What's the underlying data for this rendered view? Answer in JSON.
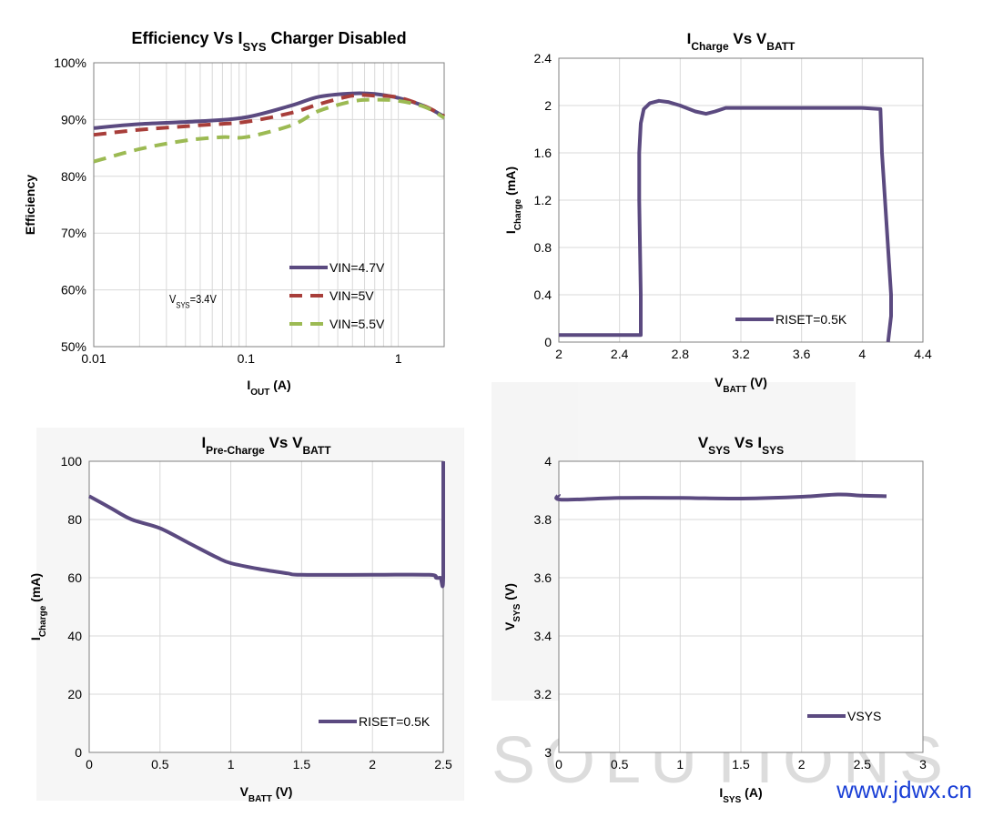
{
  "watermark": {
    "text": "SOLUTIONS"
  },
  "site": {
    "url": "www.jdwx.cn"
  },
  "colors": {
    "purple": "#5b4a80",
    "red": "#a83e3a",
    "green": "#9cba53",
    "grid": "#d9d9d9",
    "axis": "#808080"
  },
  "chart_data": [
    {
      "id": "eff",
      "type": "line",
      "title_parts": [
        {
          "t": "Efficiency Vs  I"
        },
        {
          "t": "SYS",
          "sub": true
        },
        {
          "t": " Charger Disabled"
        }
      ],
      "xlabel_parts": [
        {
          "t": "I"
        },
        {
          "t": "OUT",
          "sub": true
        },
        {
          "t": " (A)"
        }
      ],
      "ylabel_parts": [
        {
          "t": "Efficiency"
        }
      ],
      "xscale": "log",
      "xlim": [
        0.01,
        2
      ],
      "ylim": [
        50,
        100
      ],
      "xticks": [
        0.01,
        0.1,
        1
      ],
      "xtick_labels": [
        "0.01",
        "0.1",
        "1"
      ],
      "yticks": [
        50,
        60,
        70,
        80,
        90,
        100
      ],
      "ytick_labels": [
        "50%",
        "60%",
        "70%",
        "80%",
        "90%",
        "100%"
      ],
      "annotation_parts": [
        {
          "t": "V"
        },
        {
          "t": "SYS",
          "sub": true
        },
        {
          "t": "=3.4V"
        }
      ],
      "legend_position": "bottom-right",
      "series": [
        {
          "name": "VIN=4.7V",
          "color": "#5b4a80",
          "dash": "none",
          "x": [
            0.01,
            0.02,
            0.05,
            0.1,
            0.2,
            0.3,
            0.5,
            0.7,
            1,
            1.5,
            2
          ],
          "y": [
            88.5,
            89.2,
            89.7,
            90.4,
            92.5,
            94,
            94.6,
            94.5,
            93.8,
            92.3,
            90.5
          ]
        },
        {
          "name": "VIN=5V",
          "color": "#a83e3a",
          "dash": "14,9",
          "x": [
            0.01,
            0.02,
            0.05,
            0.1,
            0.2,
            0.3,
            0.5,
            0.7,
            1,
            1.5,
            2
          ],
          "y": [
            87.3,
            88.2,
            89,
            89.6,
            91.2,
            92.7,
            94.2,
            94.2,
            93.9,
            92.3,
            90.6
          ]
        },
        {
          "name": "VIN=5.5V",
          "color": "#9cba53",
          "dash": "14,9",
          "x": [
            0.01,
            0.02,
            0.04,
            0.07,
            0.1,
            0.2,
            0.3,
            0.5,
            0.7,
            1,
            1.5,
            2
          ],
          "y": [
            82.6,
            84.8,
            86.3,
            86.9,
            86.9,
            89,
            91.5,
            93.2,
            93.5,
            93.3,
            92.2,
            90.3
          ]
        }
      ]
    },
    {
      "id": "icharge",
      "type": "line",
      "title_parts": [
        {
          "t": "I"
        },
        {
          "t": "Charge",
          "sub": true
        },
        {
          "t": " Vs  V"
        },
        {
          "t": "BATT",
          "sub": true
        }
      ],
      "xlabel_parts": [
        {
          "t": "V"
        },
        {
          "t": "BATT",
          "sub": true
        },
        {
          "t": " (V)"
        }
      ],
      "ylabel_parts": [
        {
          "t": "I"
        },
        {
          "t": "Charge",
          "sub": true
        },
        {
          "t": " (mA)"
        }
      ],
      "xlim": [
        2,
        4.4
      ],
      "ylim": [
        0,
        2.4
      ],
      "xticks": [
        2,
        2.4,
        2.8,
        3.2,
        3.6,
        4,
        4.4
      ],
      "xtick_labels": [
        "2",
        "2.4",
        "2.8",
        "3.2",
        "3.6",
        "4",
        "4.4"
      ],
      "yticks": [
        0,
        0.4,
        0.8,
        1.2,
        1.6,
        2,
        2.4
      ],
      "ytick_labels": [
        "0",
        "0.4",
        "0.8",
        "1.2",
        "1.6",
        "2",
        "2.4"
      ],
      "legend_position": "bottom-right",
      "series": [
        {
          "name": "RISET=0.5K",
          "color": "#5b4a80",
          "dash": "none",
          "x": [
            2,
            2.54,
            2.54,
            2.53,
            2.53,
            2.54,
            2.56,
            2.6,
            2.66,
            2.72,
            2.8,
            2.9,
            2.97,
            3.03,
            3.1,
            3.2,
            3.6,
            4,
            4.12,
            4.13,
            4.16,
            4.19,
            4.19,
            4.17
          ],
          "y": [
            0.06,
            0.06,
            0.4,
            1.2,
            1.6,
            1.85,
            1.97,
            2.02,
            2.04,
            2.03,
            2.0,
            1.95,
            1.93,
            1.95,
            1.98,
            1.98,
            1.98,
            1.98,
            1.97,
            1.6,
            1.0,
            0.4,
            0.22,
            0.0
          ]
        }
      ]
    },
    {
      "id": "iprecharge",
      "type": "line",
      "title_parts": [
        {
          "t": "I"
        },
        {
          "t": "Pre-Charge",
          "sub": true
        },
        {
          "t": " Vs  V"
        },
        {
          "t": "BATT",
          "sub": true
        }
      ],
      "xlabel_parts": [
        {
          "t": "V"
        },
        {
          "t": "BATT",
          "sub": true
        },
        {
          "t": " (V)"
        }
      ],
      "ylabel_parts": [
        {
          "t": "I"
        },
        {
          "t": "Charge",
          "sub": true
        },
        {
          "t": " (mA)"
        }
      ],
      "xlim": [
        0,
        2.5
      ],
      "ylim": [
        0,
        100
      ],
      "xticks": [
        0,
        0.5,
        1,
        1.5,
        2,
        2.5
      ],
      "xtick_labels": [
        "0",
        "0.5",
        "1",
        "1.5",
        "2",
        "2.5"
      ],
      "yticks": [
        0,
        20,
        40,
        60,
        80,
        100
      ],
      "ytick_labels": [
        "0",
        "20",
        "40",
        "60",
        "80",
        "100"
      ],
      "legend_position": "bottom-right",
      "series": [
        {
          "name": "RISET=0.5K",
          "color": "#5b4a80",
          "dash": "none",
          "x": [
            0,
            0.15,
            0.3,
            0.5,
            0.7,
            0.9,
            1.0,
            1.2,
            1.4,
            1.5,
            2.0,
            2.4,
            2.45,
            2.48,
            2.5,
            2.5
          ],
          "y": [
            88,
            84,
            80,
            77,
            72,
            67,
            65,
            63,
            61.5,
            61,
            61,
            61,
            60,
            60,
            60,
            100
          ]
        }
      ]
    },
    {
      "id": "vsys",
      "type": "line",
      "title_parts": [
        {
          "t": "V"
        },
        {
          "t": "SYS",
          "sub": true
        },
        {
          "t": " Vs  I"
        },
        {
          "t": "SYS",
          "sub": true
        }
      ],
      "xlabel_parts": [
        {
          "t": "I"
        },
        {
          "t": "SYS",
          "sub": true
        },
        {
          "t": " (A)"
        }
      ],
      "ylabel_parts": [
        {
          "t": "V"
        },
        {
          "t": "SYS",
          "sub": true
        },
        {
          "t": " (V)"
        }
      ],
      "xlim": [
        0,
        3
      ],
      "ylim": [
        3,
        4
      ],
      "xticks": [
        0,
        0.5,
        1,
        1.5,
        2,
        2.5,
        3
      ],
      "xtick_labels": [
        "0",
        "0.5",
        "1",
        "1.5",
        "2",
        "2.5",
        "3"
      ],
      "yticks": [
        3,
        3.2,
        3.4,
        3.6,
        3.8,
        4
      ],
      "ytick_labels": [
        "3",
        "3.2",
        "3.4",
        "3.6",
        "3.8",
        "4"
      ],
      "legend_position": "bottom-right",
      "series": [
        {
          "name": "VSYS",
          "color": "#5b4a80",
          "dash": "none",
          "x": [
            0,
            0.02,
            0.5,
            1,
            1.5,
            2,
            2.3,
            2.5,
            2.7
          ],
          "y": [
            3.885,
            3.868,
            3.874,
            3.874,
            3.872,
            3.878,
            3.886,
            3.882,
            3.88
          ]
        }
      ]
    }
  ]
}
